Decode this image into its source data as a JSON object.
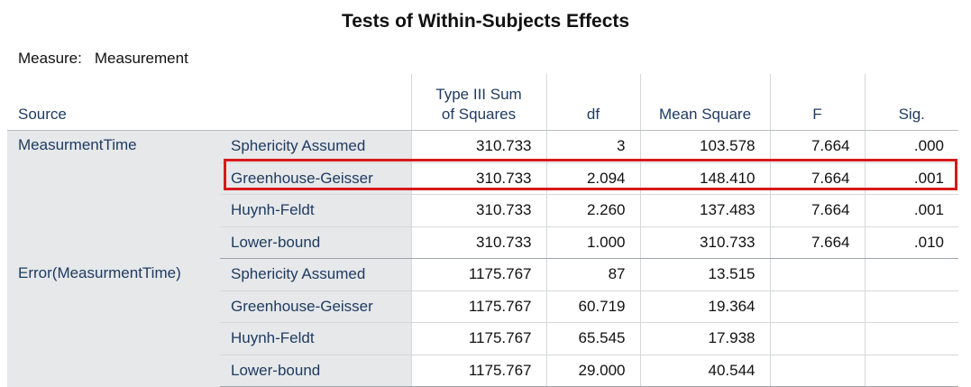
{
  "title": "Tests of Within-Subjects Effects",
  "measure": {
    "label": "Measure:",
    "value": "Measurement"
  },
  "headers": {
    "source": "Source",
    "ss_line1": "Type III Sum",
    "ss_line2": "of Squares",
    "df": "df",
    "ms": "Mean Square",
    "f": "F",
    "sig": "Sig."
  },
  "groups": [
    {
      "source": "MeasurmentTime",
      "rows": [
        {
          "correction": "Sphericity Assumed",
          "ss": "310.733",
          "df": "3",
          "ms": "103.578",
          "f": "7.664",
          "sig": ".000"
        },
        {
          "correction": "Greenhouse-Geisser",
          "ss": "310.733",
          "df": "2.094",
          "ms": "148.410",
          "f": "7.664",
          "sig": ".001"
        },
        {
          "correction": "Huynh-Feldt",
          "ss": "310.733",
          "df": "2.260",
          "ms": "137.483",
          "f": "7.664",
          "sig": ".001"
        },
        {
          "correction": "Lower-bound",
          "ss": "310.733",
          "df": "1.000",
          "ms": "310.733",
          "f": "7.664",
          "sig": ".010"
        }
      ]
    },
    {
      "source": "Error(MeasurmentTime)",
      "rows": [
        {
          "correction": "Sphericity Assumed",
          "ss": "1175.767",
          "df": "87",
          "ms": "13.515",
          "f": "",
          "sig": ""
        },
        {
          "correction": "Greenhouse-Geisser",
          "ss": "1175.767",
          "df": "60.719",
          "ms": "19.364",
          "f": "",
          "sig": ""
        },
        {
          "correction": "Huynh-Feldt",
          "ss": "1175.767",
          "df": "65.545",
          "ms": "17.938",
          "f": "",
          "sig": ""
        },
        {
          "correction": "Lower-bound",
          "ss": "1175.767",
          "df": "29.000",
          "ms": "40.544",
          "f": "",
          "sig": ""
        }
      ]
    }
  ],
  "highlight": {
    "color": "#d7191c",
    "group": 0,
    "row": 1
  }
}
